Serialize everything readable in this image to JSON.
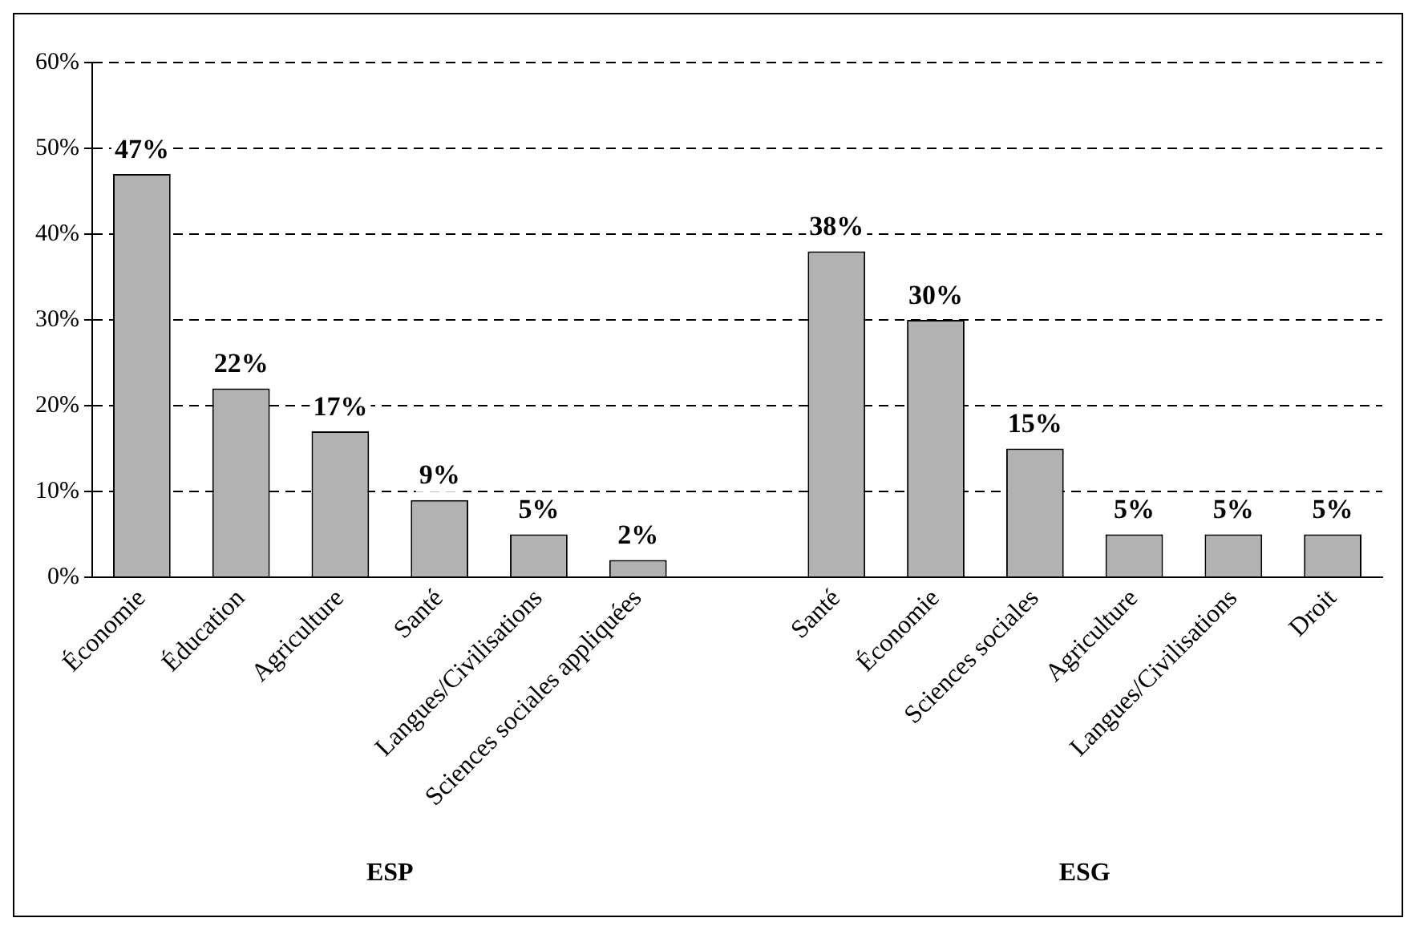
{
  "chart_data": {
    "type": "bar",
    "categories": [
      "Économie",
      "Éducation",
      "Agriculture",
      "Santé",
      "Langues/Civilisations",
      "Sciences sociales appliquées",
      null,
      "Santé",
      "Économie",
      "Sciences sociales",
      "Agriculture",
      "Langues/Civilisations",
      "Droit"
    ],
    "values": [
      47,
      22,
      17,
      9,
      5,
      2,
      null,
      38,
      30,
      15,
      5,
      5,
      5
    ],
    "value_labels": [
      "47%",
      "22%",
      "17%",
      "9%",
      "5%",
      "2%",
      null,
      "38%",
      "30%",
      "15%",
      "5%",
      "5%",
      "5%"
    ],
    "color": "#b2b2b2",
    "ylim": [
      0,
      60
    ],
    "yticks": [
      {
        "value": 0,
        "label": "0%"
      },
      {
        "value": 10,
        "label": "10%"
      },
      {
        "value": 20,
        "label": "20%"
      },
      {
        "value": 30,
        "label": "30%"
      },
      {
        "value": 40,
        "label": "40%"
      },
      {
        "value": 50,
        "label": "50%"
      },
      {
        "value": 60,
        "label": "60%"
      }
    ],
    "grid": "y",
    "legend": false,
    "annotations": [
      "ESP",
      "ESG"
    ]
  }
}
